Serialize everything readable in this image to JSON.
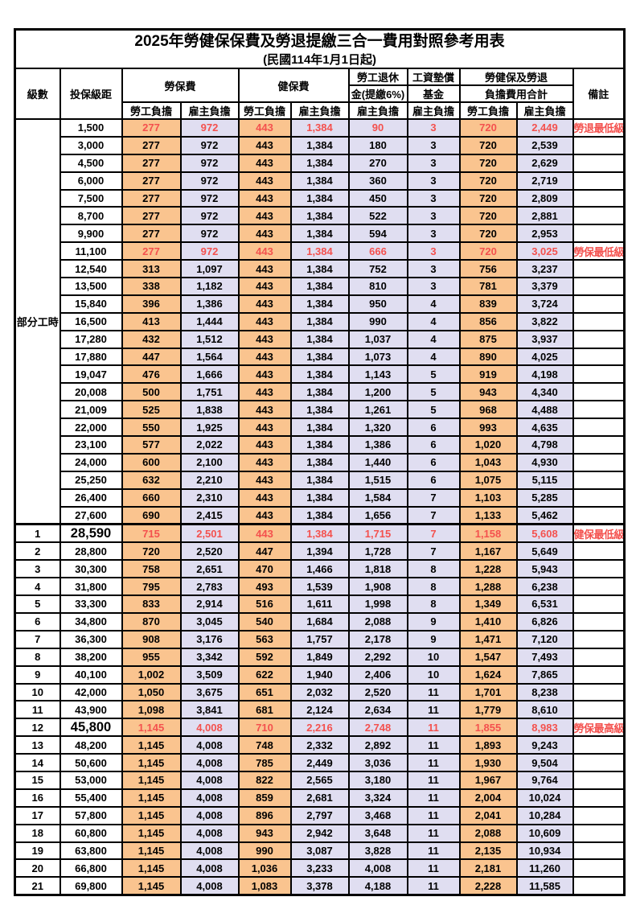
{
  "title": "2025年勞健保保費及勞退提繳三合一費用對照參考用表",
  "subtitle": "(民國114年1月1日起)",
  "header": {
    "level": "級數",
    "bracket": "投保級距",
    "labor_insurance": "勞保費",
    "health_insurance": "健保費",
    "pension_line1": "勞工退休",
    "pension_line2": "金(提繳6%)",
    "wage_fund_line1": "工資墊償",
    "wage_fund_line2": "基金",
    "total_line1": "勞健保及勞退",
    "total_line2": "負擔費用合計",
    "remark": "備註",
    "employee": "勞工負擔",
    "employer": "雇主負擔"
  },
  "part_time_label": "部分工時",
  "part_time_rowspan": 23,
  "colors": {
    "employee_bg": "#fac48f",
    "employer_bg": "#e0def1",
    "highlight_text": "#f4514e",
    "border": "#000000"
  },
  "rows": [
    {
      "level": "",
      "bracket": "1,500",
      "values": [
        "277",
        "972",
        "443",
        "1,384",
        "90",
        "3",
        "720",
        "2,449"
      ],
      "remark": "勞退最低級距",
      "red": true,
      "big": false,
      "thick": false
    },
    {
      "level": "",
      "bracket": "3,000",
      "values": [
        "277",
        "972",
        "443",
        "1,384",
        "180",
        "3",
        "720",
        "2,539"
      ],
      "remark": "",
      "red": false,
      "big": false,
      "thick": false
    },
    {
      "level": "",
      "bracket": "4,500",
      "values": [
        "277",
        "972",
        "443",
        "1,384",
        "270",
        "3",
        "720",
        "2,629"
      ],
      "remark": "",
      "red": false,
      "big": false,
      "thick": false
    },
    {
      "level": "",
      "bracket": "6,000",
      "values": [
        "277",
        "972",
        "443",
        "1,384",
        "360",
        "3",
        "720",
        "2,719"
      ],
      "remark": "",
      "red": false,
      "big": false,
      "thick": false
    },
    {
      "level": "",
      "bracket": "7,500",
      "values": [
        "277",
        "972",
        "443",
        "1,384",
        "450",
        "3",
        "720",
        "2,809"
      ],
      "remark": "",
      "red": false,
      "big": false,
      "thick": false
    },
    {
      "level": "",
      "bracket": "8,700",
      "values": [
        "277",
        "972",
        "443",
        "1,384",
        "522",
        "3",
        "720",
        "2,881"
      ],
      "remark": "",
      "red": false,
      "big": false,
      "thick": false
    },
    {
      "level": "",
      "bracket": "9,900",
      "values": [
        "277",
        "972",
        "443",
        "1,384",
        "594",
        "3",
        "720",
        "2,953"
      ],
      "remark": "",
      "red": false,
      "big": false,
      "thick": false
    },
    {
      "level": "",
      "bracket": "11,100",
      "values": [
        "277",
        "972",
        "443",
        "1,384",
        "666",
        "3",
        "720",
        "3,025"
      ],
      "remark": "勞保最低級距",
      "red": true,
      "big": false,
      "thick": false
    },
    {
      "level": "",
      "bracket": "12,540",
      "values": [
        "313",
        "1,097",
        "443",
        "1,384",
        "752",
        "3",
        "756",
        "3,237"
      ],
      "remark": "",
      "red": false,
      "big": false,
      "thick": false
    },
    {
      "level": "",
      "bracket": "13,500",
      "values": [
        "338",
        "1,182",
        "443",
        "1,384",
        "810",
        "3",
        "781",
        "3,379"
      ],
      "remark": "",
      "red": false,
      "big": false,
      "thick": false
    },
    {
      "level": "",
      "bracket": "15,840",
      "values": [
        "396",
        "1,386",
        "443",
        "1,384",
        "950",
        "4",
        "839",
        "3,724"
      ],
      "remark": "",
      "red": false,
      "big": false,
      "thick": false
    },
    {
      "level": "",
      "bracket": "16,500",
      "values": [
        "413",
        "1,444",
        "443",
        "1,384",
        "990",
        "4",
        "856",
        "3,822"
      ],
      "remark": "",
      "red": false,
      "big": false,
      "thick": false
    },
    {
      "level": "",
      "bracket": "17,280",
      "values": [
        "432",
        "1,512",
        "443",
        "1,384",
        "1,037",
        "4",
        "875",
        "3,937"
      ],
      "remark": "",
      "red": false,
      "big": false,
      "thick": false
    },
    {
      "level": "",
      "bracket": "17,880",
      "values": [
        "447",
        "1,564",
        "443",
        "1,384",
        "1,073",
        "4",
        "890",
        "4,025"
      ],
      "remark": "",
      "red": false,
      "big": false,
      "thick": false
    },
    {
      "level": "",
      "bracket": "19,047",
      "values": [
        "476",
        "1,666",
        "443",
        "1,384",
        "1,143",
        "5",
        "919",
        "4,198"
      ],
      "remark": "",
      "red": false,
      "big": false,
      "thick": false
    },
    {
      "level": "",
      "bracket": "20,008",
      "values": [
        "500",
        "1,751",
        "443",
        "1,384",
        "1,200",
        "5",
        "943",
        "4,340"
      ],
      "remark": "",
      "red": false,
      "big": false,
      "thick": false
    },
    {
      "level": "",
      "bracket": "21,009",
      "values": [
        "525",
        "1,838",
        "443",
        "1,384",
        "1,261",
        "5",
        "968",
        "4,488"
      ],
      "remark": "",
      "red": false,
      "big": false,
      "thick": false
    },
    {
      "level": "",
      "bracket": "22,000",
      "values": [
        "550",
        "1,925",
        "443",
        "1,384",
        "1,320",
        "6",
        "993",
        "4,635"
      ],
      "remark": "",
      "red": false,
      "big": false,
      "thick": false
    },
    {
      "level": "",
      "bracket": "23,100",
      "values": [
        "577",
        "2,022",
        "443",
        "1,384",
        "1,386",
        "6",
        "1,020",
        "4,798"
      ],
      "remark": "",
      "red": false,
      "big": false,
      "thick": false
    },
    {
      "level": "",
      "bracket": "24,000",
      "values": [
        "600",
        "2,100",
        "443",
        "1,384",
        "1,440",
        "6",
        "1,043",
        "4,930"
      ],
      "remark": "",
      "red": false,
      "big": false,
      "thick": false
    },
    {
      "level": "",
      "bracket": "25,250",
      "values": [
        "632",
        "2,210",
        "443",
        "1,384",
        "1,515",
        "6",
        "1,075",
        "5,115"
      ],
      "remark": "",
      "red": false,
      "big": false,
      "thick": false
    },
    {
      "level": "",
      "bracket": "26,400",
      "values": [
        "660",
        "2,310",
        "443",
        "1,384",
        "1,584",
        "7",
        "1,103",
        "5,285"
      ],
      "remark": "",
      "red": false,
      "big": false,
      "thick": false
    },
    {
      "level": "",
      "bracket": "27,600",
      "values": [
        "690",
        "2,415",
        "443",
        "1,384",
        "1,656",
        "7",
        "1,133",
        "5,462"
      ],
      "remark": "",
      "red": false,
      "big": false,
      "thick": false
    },
    {
      "level": "1",
      "bracket": "28,590",
      "values": [
        "715",
        "2,501",
        "443",
        "1,384",
        "1,715",
        "7",
        "1,158",
        "5,608"
      ],
      "remark": "健保最低級距",
      "red": true,
      "big": true,
      "thick": true
    },
    {
      "level": "2",
      "bracket": "28,800",
      "values": [
        "720",
        "2,520",
        "447",
        "1,394",
        "1,728",
        "7",
        "1,167",
        "5,649"
      ],
      "remark": "",
      "red": false,
      "big": false,
      "thick": false
    },
    {
      "level": "3",
      "bracket": "30,300",
      "values": [
        "758",
        "2,651",
        "470",
        "1,466",
        "1,818",
        "8",
        "1,228",
        "5,943"
      ],
      "remark": "",
      "red": false,
      "big": false,
      "thick": false
    },
    {
      "level": "4",
      "bracket": "31,800",
      "values": [
        "795",
        "2,783",
        "493",
        "1,539",
        "1,908",
        "8",
        "1,288",
        "6,238"
      ],
      "remark": "",
      "red": false,
      "big": false,
      "thick": false
    },
    {
      "level": "5",
      "bracket": "33,300",
      "values": [
        "833",
        "2,914",
        "516",
        "1,611",
        "1,998",
        "8",
        "1,349",
        "6,531"
      ],
      "remark": "",
      "red": false,
      "big": false,
      "thick": false
    },
    {
      "level": "6",
      "bracket": "34,800",
      "values": [
        "870",
        "3,045",
        "540",
        "1,684",
        "2,088",
        "9",
        "1,410",
        "6,826"
      ],
      "remark": "",
      "red": false,
      "big": false,
      "thick": false
    },
    {
      "level": "7",
      "bracket": "36,300",
      "values": [
        "908",
        "3,176",
        "563",
        "1,757",
        "2,178",
        "9",
        "1,471",
        "7,120"
      ],
      "remark": "",
      "red": false,
      "big": false,
      "thick": false
    },
    {
      "level": "8",
      "bracket": "38,200",
      "values": [
        "955",
        "3,342",
        "592",
        "1,849",
        "2,292",
        "10",
        "1,547",
        "7,493"
      ],
      "remark": "",
      "red": false,
      "big": false,
      "thick": false
    },
    {
      "level": "9",
      "bracket": "40,100",
      "values": [
        "1,002",
        "3,509",
        "622",
        "1,940",
        "2,406",
        "10",
        "1,624",
        "7,865"
      ],
      "remark": "",
      "red": false,
      "big": false,
      "thick": false
    },
    {
      "level": "10",
      "bracket": "42,000",
      "values": [
        "1,050",
        "3,675",
        "651",
        "2,032",
        "2,520",
        "11",
        "1,701",
        "8,238"
      ],
      "remark": "",
      "red": false,
      "big": false,
      "thick": false
    },
    {
      "level": "11",
      "bracket": "43,900",
      "values": [
        "1,098",
        "3,841",
        "681",
        "2,124",
        "2,634",
        "11",
        "1,779",
        "8,610"
      ],
      "remark": "",
      "red": false,
      "big": false,
      "thick": false
    },
    {
      "level": "12",
      "bracket": "45,800",
      "values": [
        "1,145",
        "4,008",
        "710",
        "2,216",
        "2,748",
        "11",
        "1,855",
        "8,983"
      ],
      "remark": "勞保最高級距",
      "red": true,
      "big": true,
      "thick": false
    },
    {
      "level": "13",
      "bracket": "48,200",
      "values": [
        "1,145",
        "4,008",
        "748",
        "2,332",
        "2,892",
        "11",
        "1,893",
        "9,243"
      ],
      "remark": "",
      "red": false,
      "big": false,
      "thick": false
    },
    {
      "level": "14",
      "bracket": "50,600",
      "values": [
        "1,145",
        "4,008",
        "785",
        "2,449",
        "3,036",
        "11",
        "1,930",
        "9,504"
      ],
      "remark": "",
      "red": false,
      "big": false,
      "thick": false
    },
    {
      "level": "15",
      "bracket": "53,000",
      "values": [
        "1,145",
        "4,008",
        "822",
        "2,565",
        "3,180",
        "11",
        "1,967",
        "9,764"
      ],
      "remark": "",
      "red": false,
      "big": false,
      "thick": false
    },
    {
      "level": "16",
      "bracket": "55,400",
      "values": [
        "1,145",
        "4,008",
        "859",
        "2,681",
        "3,324",
        "11",
        "2,004",
        "10,024"
      ],
      "remark": "",
      "red": false,
      "big": false,
      "thick": false
    },
    {
      "level": "17",
      "bracket": "57,800",
      "values": [
        "1,145",
        "4,008",
        "896",
        "2,797",
        "3,468",
        "11",
        "2,041",
        "10,284"
      ],
      "remark": "",
      "red": false,
      "big": false,
      "thick": false
    },
    {
      "level": "18",
      "bracket": "60,800",
      "values": [
        "1,145",
        "4,008",
        "943",
        "2,942",
        "3,648",
        "11",
        "2,088",
        "10,609"
      ],
      "remark": "",
      "red": false,
      "big": false,
      "thick": false
    },
    {
      "level": "19",
      "bracket": "63,800",
      "values": [
        "1,145",
        "4,008",
        "990",
        "3,087",
        "3,828",
        "11",
        "2,135",
        "10,934"
      ],
      "remark": "",
      "red": false,
      "big": false,
      "thick": false
    },
    {
      "level": "20",
      "bracket": "66,800",
      "values": [
        "1,145",
        "4,008",
        "1,036",
        "3,233",
        "4,008",
        "11",
        "2,181",
        "11,260"
      ],
      "remark": "",
      "red": false,
      "big": false,
      "thick": false
    },
    {
      "level": "21",
      "bracket": "69,800",
      "values": [
        "1,145",
        "4,008",
        "1,083",
        "3,378",
        "4,188",
        "11",
        "2,228",
        "11,585"
      ],
      "remark": "",
      "red": false,
      "big": false,
      "thick": false
    }
  ]
}
